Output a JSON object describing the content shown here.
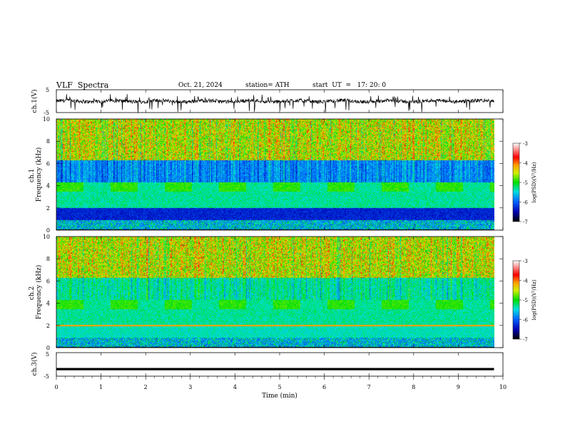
{
  "header": {
    "title": "VLF  Spectra",
    "date": "Oct. 21, 2024",
    "station": "station= ATH",
    "start": "start  UT  =   17: 20: 0"
  },
  "chart_data": [
    {
      "type": "line",
      "panel": "ch1-waveform",
      "ylabel": "ch.1(V)",
      "ylim": [
        -5,
        5
      ],
      "yticks": [
        "5",
        "-5"
      ],
      "x_range_min": [
        0,
        9.8
      ],
      "baseline": 0,
      "note_color": "#000000"
    },
    {
      "type": "heatmap",
      "panel": "ch1-spectrogram",
      "ylabel": "ch.1 Frequency  (kHz)",
      "ylim": [
        0,
        10
      ],
      "yticks": [
        "0",
        "2",
        "4",
        "6",
        "8",
        "10"
      ],
      "colorbar": {
        "label": "log(PSD)(V²/Hz)",
        "ticks": [
          "-3",
          "-4",
          "-5",
          "-6",
          "-7"
        ],
        "range": [
          -7,
          -3
        ]
      }
    },
    {
      "type": "heatmap",
      "panel": "ch2-spectrogram",
      "ylabel": "ch.2 Frequency  (kHz)",
      "ylim": [
        0,
        10
      ],
      "yticks": [
        "0",
        "2",
        "4",
        "6",
        "8",
        "10"
      ],
      "colorbar": {
        "label": "log(PSD)(V²/Hz)",
        "ticks": [
          "-3",
          "-4",
          "-5",
          "-6",
          "-7"
        ],
        "range": [
          -7,
          -3
        ]
      }
    },
    {
      "type": "line",
      "panel": "ch3-waveform",
      "ylabel": "ch.3(V)",
      "ylim": [
        -5,
        5
      ],
      "yticks": [
        "5",
        "-5"
      ],
      "baseline": -2,
      "note_color": "#000000"
    }
  ],
  "xaxis": {
    "label": "Time  (min)",
    "ticks": [
      "0",
      "1",
      "2",
      "3",
      "4",
      "5",
      "6",
      "7",
      "8",
      "9",
      "10"
    ],
    "range": [
      0,
      10
    ]
  }
}
